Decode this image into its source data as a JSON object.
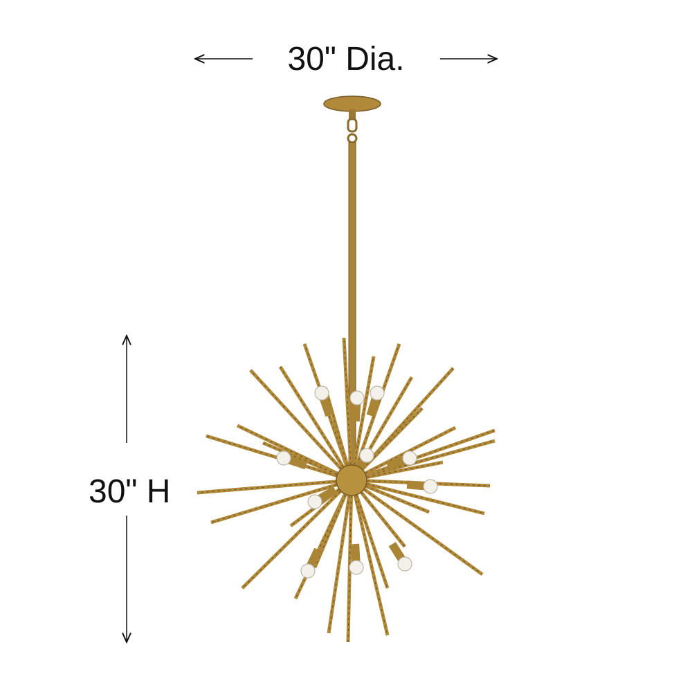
{
  "dimensions": {
    "diameter_label": "30\" Dia.",
    "height_label": "30\" H"
  },
  "product": {
    "image": "sputnik-chandelier",
    "finish_color": "#b08a3a",
    "finish_dark": "#6e5220",
    "bulb_color": "#f4f1ea"
  },
  "arrow_color": "#111111"
}
